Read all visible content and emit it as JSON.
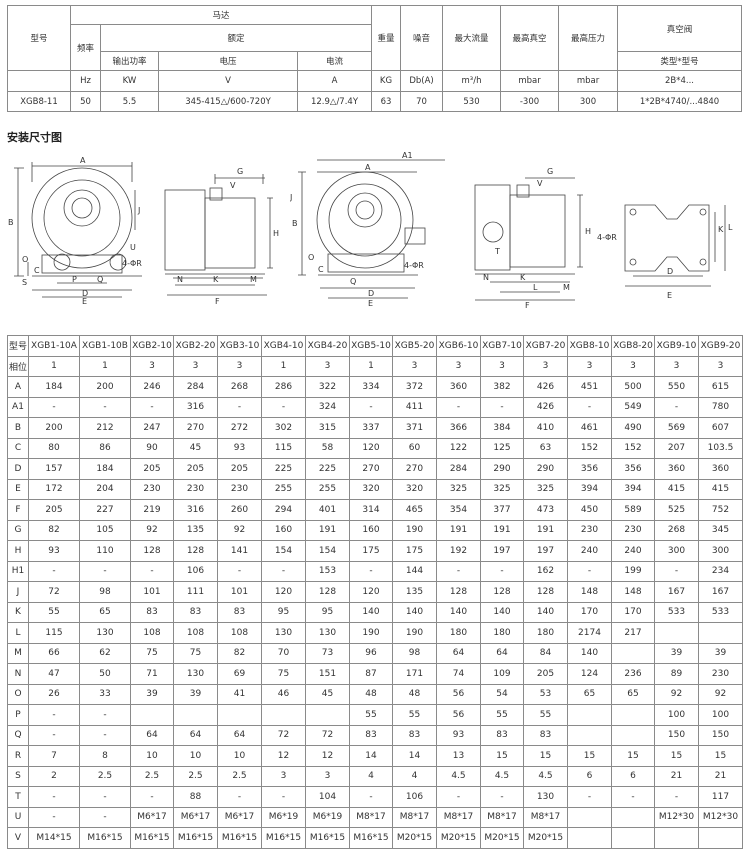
{
  "spec_table": {
    "header": {
      "model": "型号",
      "motor": "马达",
      "frequency": "频率",
      "rated": "额定",
      "output_power": "输出功率",
      "voltage": "电压",
      "current": "电流",
      "weight": "重量",
      "noise": "噪音",
      "max_flow": "最大流量",
      "max_vacuum": "最高真空",
      "max_pressure": "最高压力",
      "vacuum_valve": "真空阀",
      "valve_type": "类型*型号"
    },
    "units": [
      "",
      "Hz",
      "KW",
      "V",
      "A",
      "KG",
      "Db(A)",
      "m³/h",
      "mbar",
      "mbar",
      "2B*4..."
    ],
    "row": [
      "XGB8-11",
      "50",
      "5.5",
      "345-415△/600-720Y",
      "12.9△/7.4Y",
      "63",
      "70",
      "530",
      "-300",
      "300",
      "1*2B*4740/...4840"
    ]
  },
  "section_title": "安装尺寸图",
  "drawing_labels": {
    "d1": [
      "A",
      "B",
      "J",
      "O",
      "S",
      "C",
      "P",
      "Q",
      "D",
      "E",
      "U",
      "4-ΦR"
    ],
    "d2": [
      "G",
      "V",
      "H",
      "N",
      "K",
      "M",
      "F"
    ],
    "d3": [
      "A1",
      "A",
      "J",
      "B",
      "O",
      "C",
      "Q",
      "D",
      "E",
      "4-ΦR"
    ],
    "d4": [
      "G",
      "V",
      "H",
      "T",
      "N",
      "K",
      "L",
      "M",
      "F"
    ],
    "d5": [
      "4-ΦR",
      "K",
      "L",
      "D",
      "E"
    ]
  },
  "dims_table": {
    "header_label": "型号",
    "models": [
      "XGB1-10A",
      "XGB1-10B",
      "XGB2-10",
      "XGB2-20",
      "XGB3-10",
      "XGB4-10",
      "XGB4-20",
      "XGB5-10",
      "XGB5-20",
      "XGB6-10",
      "XGB7-10",
      "XGB7-20",
      "XGB8-10",
      "XGB8-20",
      "XGB9-10",
      "XGB9-20"
    ],
    "rows": [
      {
        "label": "相位",
        "values": [
          "1",
          "1",
          "3",
          "3",
          "3",
          "1",
          "3",
          "1",
          "3",
          "3",
          "3",
          "3",
          "3",
          "3",
          "3",
          "3"
        ]
      },
      {
        "label": "A",
        "values": [
          "184",
          "200",
          "246",
          "284",
          "268",
          "286",
          "322",
          "334",
          "372",
          "360",
          "382",
          "426",
          "451",
          "500",
          "550",
          "615"
        ]
      },
      {
        "label": "A1",
        "values": [
          "-",
          "-",
          "-",
          "316",
          "-",
          "-",
          "324",
          "-",
          "411",
          "-",
          "-",
          "426",
          "-",
          "549",
          "-",
          "780"
        ]
      },
      {
        "label": "B",
        "values": [
          "200",
          "212",
          "247",
          "270",
          "272",
          "302",
          "315",
          "337",
          "371",
          "366",
          "384",
          "410",
          "461",
          "490",
          "569",
          "607"
        ]
      },
      {
        "label": "C",
        "values": [
          "80",
          "86",
          "90",
          "45",
          "93",
          "115",
          "58",
          "120",
          "60",
          "122",
          "125",
          "63",
          "152",
          "152",
          "207",
          "103.5"
        ]
      },
      {
        "label": "D",
        "values": [
          "157",
          "184",
          "205",
          "205",
          "205",
          "225",
          "225",
          "270",
          "270",
          "284",
          "290",
          "290",
          "356",
          "356",
          "360",
          "360"
        ]
      },
      {
        "label": "E",
        "values": [
          "172",
          "204",
          "230",
          "230",
          "230",
          "255",
          "255",
          "320",
          "320",
          "325",
          "325",
          "325",
          "394",
          "394",
          "415",
          "415"
        ]
      },
      {
        "label": "F",
        "values": [
          "205",
          "227",
          "219",
          "316",
          "260",
          "294",
          "401",
          "314",
          "465",
          "354",
          "377",
          "473",
          "450",
          "589",
          "525",
          "752"
        ]
      },
      {
        "label": "G",
        "values": [
          "82",
          "105",
          "92",
          "135",
          "92",
          "160",
          "191",
          "160",
          "190",
          "191",
          "191",
          "191",
          "230",
          "230",
          "268",
          "345"
        ]
      },
      {
        "label": "H",
        "values": [
          "93",
          "110",
          "128",
          "128",
          "141",
          "154",
          "154",
          "175",
          "175",
          "192",
          "197",
          "197",
          "240",
          "240",
          "300",
          "300"
        ]
      },
      {
        "label": "H1",
        "values": [
          "-",
          "-",
          "-",
          "106",
          "-",
          "-",
          "153",
          "-",
          "144",
          "-",
          "-",
          "162",
          "-",
          "199",
          "-",
          "234"
        ]
      },
      {
        "label": "J",
        "values": [
          "72",
          "98",
          "101",
          "111",
          "101",
          "120",
          "128",
          "120",
          "135",
          "128",
          "128",
          "128",
          "148",
          "148",
          "167",
          "167"
        ]
      },
      {
        "label": "K",
        "values": [
          "55",
          "65",
          "83",
          "83",
          "83",
          "95",
          "95",
          "140",
          "140",
          "140",
          "140",
          "140",
          "170",
          "170",
          "533",
          "533"
        ]
      },
      {
        "label": "L",
        "values": [
          "115",
          "130",
          "108",
          "108",
          "108",
          "130",
          "130",
          "190",
          "190",
          "180",
          "180",
          "180",
          "2174",
          "217",
          "",
          ""
        ]
      },
      {
        "label": "M",
        "values": [
          "66",
          "62",
          "75",
          "75",
          "82",
          "70",
          "73",
          "96",
          "98",
          "64",
          "64",
          "84",
          "140",
          "",
          "39",
          "39"
        ]
      },
      {
        "label": "N",
        "values": [
          "47",
          "50",
          "71",
          "130",
          "69",
          "75",
          "151",
          "87",
          "171",
          "74",
          "109",
          "205",
          "124",
          "236",
          "89",
          "230"
        ]
      },
      {
        "label": "O",
        "values": [
          "26",
          "33",
          "39",
          "39",
          "41",
          "46",
          "45",
          "48",
          "48",
          "56",
          "54",
          "53",
          "65",
          "65",
          "92",
          "92"
        ]
      },
      {
        "label": "P",
        "values": [
          "-",
          "-",
          "",
          "",
          "",
          "",
          "",
          "55",
          "55",
          "56",
          "55",
          "55",
          "",
          "",
          "100",
          "100"
        ]
      },
      {
        "label": "Q",
        "values": [
          "-",
          "-",
          "64",
          "64",
          "64",
          "72",
          "72",
          "83",
          "83",
          "93",
          "83",
          "83",
          "",
          "",
          "150",
          "150"
        ]
      },
      {
        "label": "R",
        "values": [
          "7",
          "8",
          "10",
          "10",
          "10",
          "12",
          "12",
          "14",
          "14",
          "13",
          "15",
          "15",
          "15",
          "15",
          "15",
          "15"
        ]
      },
      {
        "label": "S",
        "values": [
          "2",
          "2.5",
          "2.5",
          "2.5",
          "2.5",
          "3",
          "3",
          "4",
          "4",
          "4.5",
          "4.5",
          "4.5",
          "6",
          "6",
          "21",
          "21"
        ]
      },
      {
        "label": "T",
        "values": [
          "-",
          "-",
          "-",
          "88",
          "-",
          "-",
          "104",
          "-",
          "106",
          "-",
          "-",
          "130",
          "-",
          "-",
          "-",
          "117"
        ]
      },
      {
        "label": "U",
        "values": [
          "-",
          "-",
          "M6*17",
          "M6*17",
          "M6*17",
          "M6*19",
          "M6*19",
          "M8*17",
          "M8*17",
          "M8*17",
          "M8*17",
          "M8*17",
          "",
          "",
          "M12*30",
          "M12*30"
        ]
      },
      {
        "label": "V",
        "values": [
          "M14*15",
          "M16*15",
          "M16*15",
          "M16*15",
          "M16*15",
          "M16*15",
          "M16*15",
          "M16*15",
          "M20*15",
          "M20*15",
          "M20*15",
          "M20*15",
          "",
          "",
          "",
          ""
        ]
      }
    ]
  }
}
